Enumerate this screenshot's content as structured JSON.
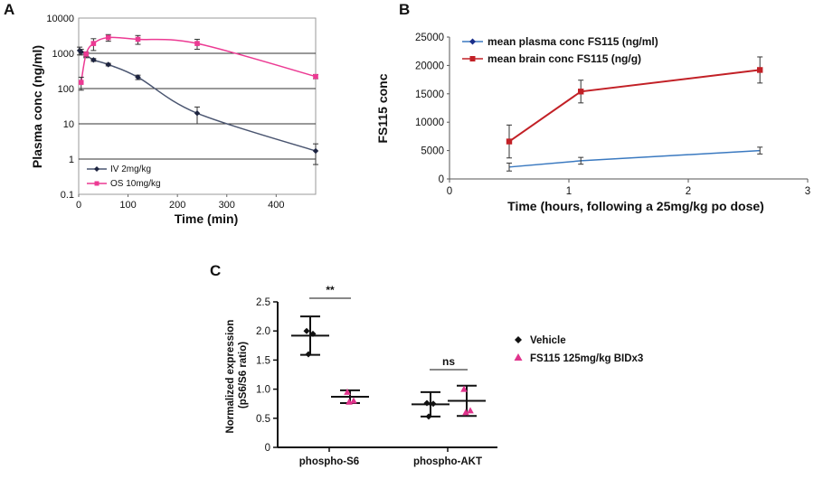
{
  "panels": [
    "A",
    "B",
    "C"
  ],
  "chart_data": [
    {
      "type": "line",
      "panel": "A",
      "title": "",
      "xlabel": "Time (min)",
      "ylabel": "Plasma conc (ng/ml)",
      "yscale": "log",
      "xlim": [
        0,
        480
      ],
      "ylim": [
        0.1,
        10000
      ],
      "xticks": [
        "0",
        "100",
        "200",
        "300",
        "400"
      ],
      "yticks": [
        "0.1",
        "1",
        "10",
        "100",
        "1000",
        "10000"
      ],
      "gridlines": "horizontal at decades",
      "legend_position": "lower-left",
      "series": [
        {
          "name": "IV 2mg/kg",
          "color": "#4a5570",
          "marker": "diamond",
          "x": [
            2,
            5,
            15,
            30,
            60,
            120,
            240,
            480
          ],
          "y": [
            1200,
            1100,
            900,
            650,
            480,
            210,
            20,
            1.7
          ],
          "err": [
            300,
            200,
            150,
            60,
            40,
            30,
            10,
            1
          ]
        },
        {
          "name": "OS 10mg/kg",
          "color": "#ec3a93",
          "marker": "square",
          "x": [
            5,
            15,
            30,
            60,
            120,
            240,
            480
          ],
          "y": [
            150,
            950,
            1900,
            2800,
            2500,
            1900,
            220
          ],
          "err": [
            60,
            150,
            700,
            600,
            700,
            600,
            30
          ]
        }
      ]
    },
    {
      "type": "line",
      "panel": "B",
      "title": "",
      "xlabel": "Time (hours, following a 25mg/kg po dose)",
      "ylabel": "FS115 conc",
      "xlim": [
        0,
        3
      ],
      "ylim": [
        0,
        25000
      ],
      "xticks": [
        "0",
        "1",
        "2",
        "3"
      ],
      "yticks": [
        "0",
        "5000",
        "10000",
        "15000",
        "20000",
        "25000"
      ],
      "legend_position": "top-left",
      "series": [
        {
          "name": "mean plasma conc FS115 (ng/ml)",
          "color": "#3a79c0",
          "marker": "diamond",
          "x": [
            0.5,
            1.1,
            2.6
          ],
          "y": [
            2100,
            3200,
            5000
          ],
          "err": [
            700,
            600,
            600
          ]
        },
        {
          "name": "mean brain conc FS115 (ng/g)",
          "color": "#c22026",
          "marker": "square",
          "x": [
            0.5,
            1.1,
            2.6
          ],
          "y": [
            6600,
            15400,
            19200
          ],
          "err": [
            2900,
            2000,
            2300
          ]
        }
      ]
    },
    {
      "type": "scatter",
      "panel": "C",
      "title": "",
      "xlabel": "",
      "ylabel": "Normalized expression\n(pS6/S6 ratio)",
      "ylabel_line1": "Normalized expression",
      "ylabel_line2": "(pS6/S6 ratio)",
      "ylim": [
        0,
        2.5
      ],
      "yticks": [
        "0",
        "0.5",
        "1.0",
        "1.5",
        "2.0",
        "2.5"
      ],
      "categories": [
        "phospho-S6",
        "phospho-AKT"
      ],
      "legend_position": "right",
      "significance": [
        {
          "category": "phospho-S6",
          "label": "**"
        },
        {
          "category": "phospho-AKT",
          "label": "ns"
        }
      ],
      "series": [
        {
          "name": "Vehicle",
          "color": "#111111",
          "marker": "diamond",
          "points": [
            [
              2.0,
              1.95,
              1.6
            ],
            [
              0.76,
              0.75,
              0.53
            ]
          ],
          "mean": [
            1.92,
            0.74
          ],
          "sd": [
            0.33,
            0.21
          ]
        },
        {
          "name": "FS115 125mg/kg BIDx3",
          "color": "#e0338c",
          "marker": "triangle",
          "points": [
            [
              0.95,
              0.8,
              0.78
            ],
            [
              1.0,
              0.63,
              0.6
            ]
          ],
          "mean": [
            0.87,
            0.8
          ],
          "sd": [
            0.11,
            0.26
          ]
        }
      ]
    }
  ]
}
